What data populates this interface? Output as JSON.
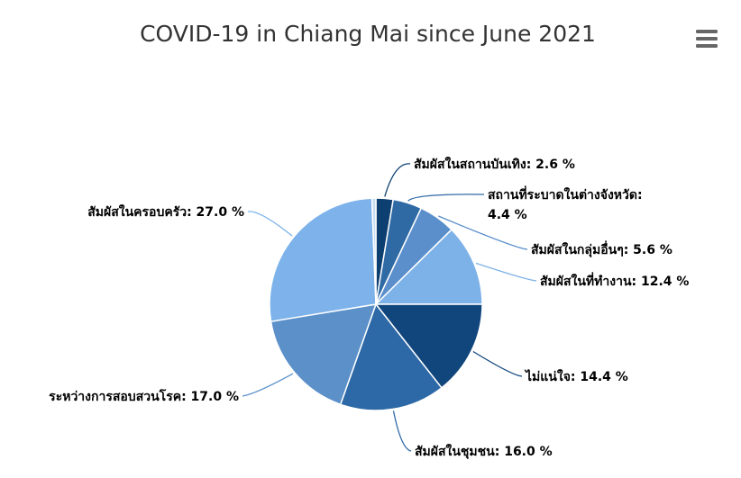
{
  "chart_data": {
    "type": "pie",
    "title": "COVID-19 in Chiang Mai since June 2021",
    "unit": "%",
    "legend": "none",
    "slices": [
      {
        "label": "สัมผัสในสถานบันเทิง",
        "value": 2.6,
        "display": "สัมผัสในสถานบันเทิง: 2.6 %",
        "color": "#0d3f70"
      },
      {
        "label": "สถานที่ระบาดในต่างจังหวัด",
        "value": 4.4,
        "display": "สถานที่ระบาดในต่างจังหวัด: 4.4 %",
        "color": "#2f6aa5"
      },
      {
        "label": "สัมผัสในกลุ่มอื่นๆ",
        "value": 5.6,
        "display": "สัมผัสในกลุ่มอื่นๆ: 5.6 %",
        "color": "#5a8fcb"
      },
      {
        "label": "สัมผัสในที่ทำงาน",
        "value": 12.4,
        "display": "สัมผัสในที่ทำงาน: 12.4 %",
        "color": "#7db2e8"
      },
      {
        "label": "ไม่แน่ใจ",
        "value": 14.4,
        "display": "ไม่แน่ใจ: 14.4 %",
        "color": "#11467d"
      },
      {
        "label": "สัมผัสในชุมชน",
        "value": 16.0,
        "display": "สัมผัสในชุมชน: 16.0 %",
        "color": "#2d69a6"
      },
      {
        "label": "ระหว่างการสอบสวนโรค",
        "value": 17.0,
        "display": "ระหว่างการสอบสวนโรค: 17.0 %",
        "color": "#5b90c9"
      },
      {
        "label": "สัมผัสในครอบครัว",
        "value": 27.0,
        "display": "สัมผัสในครอบครัว: 27.0 %",
        "color": "#7db3ea"
      },
      {
        "label": "",
        "value": 0.6,
        "display": "",
        "color": "#c8dcf0"
      }
    ]
  },
  "toolbar": {
    "menu_icon": "hamburger-menu-icon",
    "menu_color": "#666666"
  }
}
